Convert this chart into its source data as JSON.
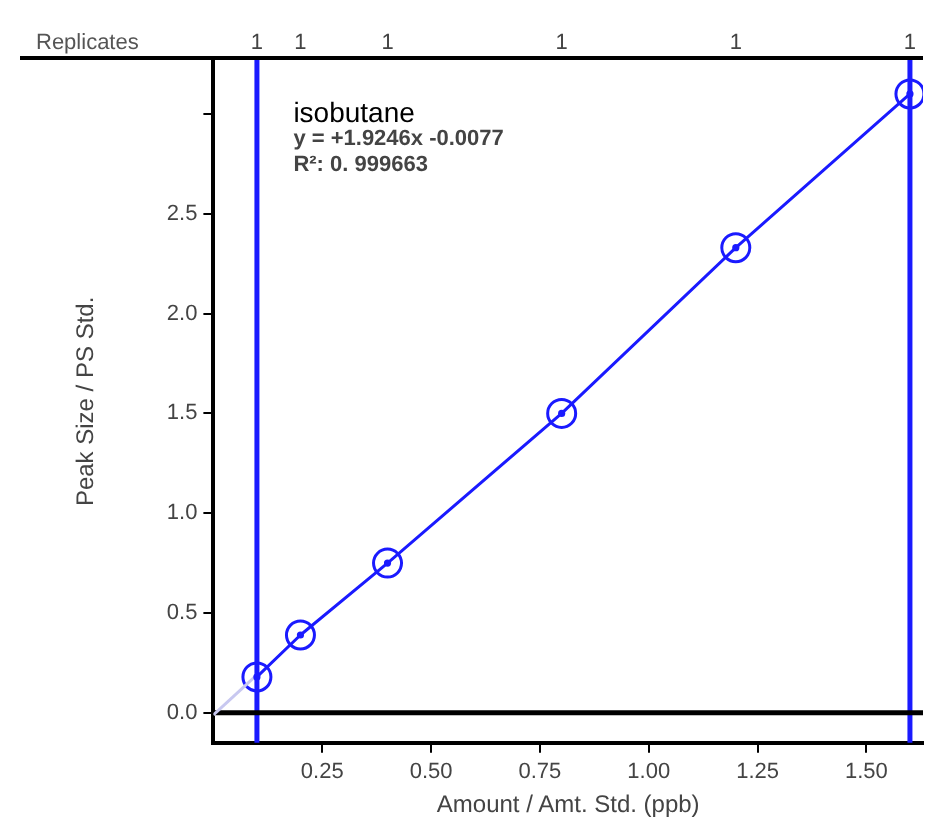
{
  "chart_data": {
    "type": "scatter",
    "xlabel": "Amount / Amt. Std. (ppb)",
    "ylabel": "Peak Size / PS Std.",
    "annotations": [
      "isobutane",
      "y = +1.9246x -0.0077",
      "R²: 0. 999663",
      "Replicates",
      "1",
      "1",
      "1",
      "1",
      "1",
      "1"
    ],
    "series": [
      {
        "type": "line",
        "color": "#c8c8f0",
        "x": [
          0,
          0.1
        ],
        "values": [
          -0.01,
          0.19
        ]
      },
      {
        "type": "line",
        "color": "#1a1aff",
        "x": [
          0.1,
          0.2,
          0.4,
          0.8,
          1.2,
          1.6
        ],
        "values": [
          0.18,
          0.39,
          0.75,
          1.5,
          2.33,
          3.1
        ],
        "marker": "circle"
      }
    ],
    "xlim": [
      0,
      1.63
    ],
    "xticks": [
      0.25,
      {
        "value": 0.5,
        "label": "0.50"
      },
      0.75,
      {
        "value": 1,
        "label": "1.00"
      },
      1.25,
      {
        "value": 1.5,
        "label": "1.50"
      }
    ],
    "ylim": [
      -0.15,
      3.27
    ],
    "yticks": [
      {
        "value": 0,
        "label": "0.0"
      },
      0.5,
      {
        "value": 1,
        "label": "1.0"
      },
      1.5,
      {
        "value": 2,
        "label": "2.0"
      },
      2.5,
      {
        "value": 3,
        "label": null
      }
    ],
    "ref_lines": [
      {
        "axis": "x",
        "value": 0.1,
        "color": "#1a1aff"
      },
      {
        "axis": "x",
        "value": 1.6,
        "color": "#1a1aff"
      },
      {
        "axis": "y",
        "value": 0,
        "color": "#000000"
      }
    ],
    "grid": false,
    "legend": false
  }
}
